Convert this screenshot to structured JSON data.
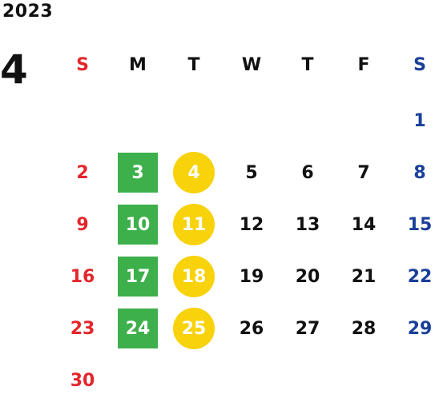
{
  "year": "2023",
  "month": "4",
  "weekday_headers": [
    "S",
    "M",
    "T",
    "W",
    "T",
    "F",
    "S"
  ],
  "weeks": [
    [
      "",
      "",
      "",
      "",
      "",
      "",
      "1"
    ],
    [
      "2",
      "3",
      "4",
      "5",
      "6",
      "7",
      "8"
    ],
    [
      "9",
      "10",
      "11",
      "12",
      "13",
      "14",
      "15"
    ],
    [
      "16",
      "17",
      "18",
      "19",
      "20",
      "21",
      "22"
    ],
    [
      "23",
      "24",
      "25",
      "26",
      "27",
      "28",
      "29"
    ],
    [
      "30",
      "",
      "",
      "",
      "",
      "",
      ""
    ]
  ],
  "highlights": {
    "green_box_days": [
      "3",
      "10",
      "17",
      "24"
    ],
    "yellow_circle_days": [
      "4",
      "11",
      "18",
      "25"
    ]
  },
  "colors": {
    "sunday": "#e3262b",
    "saturday": "#1a3f99",
    "weekday": "#111111",
    "green_box": "#3db04b",
    "yellow_circle": "#f8d20a",
    "highlight_text": "#ffffff"
  }
}
